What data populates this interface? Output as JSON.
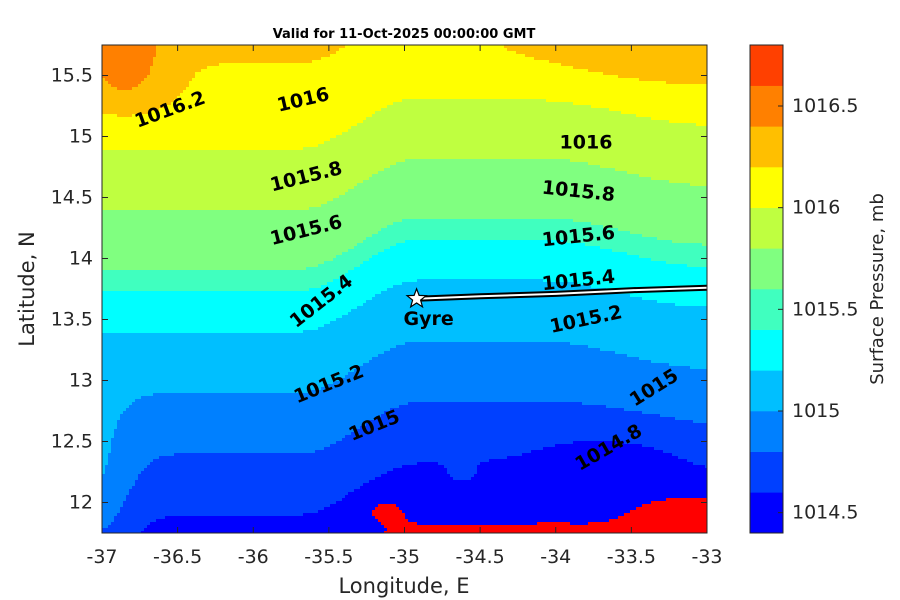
{
  "chart_data": {
    "type": "heatmap",
    "subtype": "filled-contour",
    "title": "Valid for 11-Oct-2025 00:00:00 GMT",
    "xlabel": "Longitude, E",
    "ylabel": "Latitude, N",
    "colorbar_label": "Surface Pressure, mb",
    "xlim": [
      -37,
      -33
    ],
    "ylim": [
      11.75,
      15.75
    ],
    "x_ticks": [
      -37,
      -36.5,
      -36,
      -35.5,
      -35,
      -34.5,
      -34,
      -33.5,
      -33
    ],
    "y_ticks": [
      12,
      12.5,
      13,
      13.5,
      14,
      14.5,
      15,
      15.5
    ],
    "colorbar": {
      "range": [
        1014.4,
        1016.8
      ],
      "ticks": [
        1014.5,
        1015,
        1015.5,
        1016,
        1016.5
      ],
      "bands": [
        {
          "from": 1014.4,
          "to": 1014.6,
          "color": "#0000ff"
        },
        {
          "from": 1014.6,
          "to": 1014.8,
          "color": "#0040ff"
        },
        {
          "from": 1014.8,
          "to": 1015.0,
          "color": "#0080ff"
        },
        {
          "from": 1015.0,
          "to": 1015.2,
          "color": "#00bfff"
        },
        {
          "from": 1015.2,
          "to": 1015.4,
          "color": "#00ffff"
        },
        {
          "from": 1015.4,
          "to": 1015.6,
          "color": "#40ffbf"
        },
        {
          "from": 1015.6,
          "to": 1015.8,
          "color": "#80ff80"
        },
        {
          "from": 1015.8,
          "to": 1016.0,
          "color": "#bfff40"
        },
        {
          "from": 1016.0,
          "to": 1016.2,
          "color": "#ffff00"
        },
        {
          "from": 1016.2,
          "to": 1016.4,
          "color": "#ffbf00"
        },
        {
          "from": 1016.4,
          "to": 1016.6,
          "color": "#ff8000"
        },
        {
          "from": 1016.6,
          "to": 1016.8,
          "color": "#ff4000"
        }
      ],
      "top_color": "#ff0000"
    },
    "contour_levels": [
      1014.6,
      1014.8,
      1015.0,
      1015.2,
      1015.4,
      1015.6,
      1015.8,
      1016.0,
      1016.2,
      1016.4
    ],
    "contour_labels": [
      {
        "text": "1016.2",
        "lon": -36.55,
        "lat": 15.22,
        "angle": -20
      },
      {
        "text": "1016",
        "lon": -35.67,
        "lat": 15.3,
        "angle": -13
      },
      {
        "text": "1016",
        "lon": -33.8,
        "lat": 14.95,
        "angle": 0
      },
      {
        "text": "1015.8",
        "lon": -35.65,
        "lat": 14.67,
        "angle": -14
      },
      {
        "text": "1015.8",
        "lon": -33.85,
        "lat": 14.55,
        "angle": 6
      },
      {
        "text": "1015.6",
        "lon": -35.65,
        "lat": 14.23,
        "angle": -14
      },
      {
        "text": "1015.6",
        "lon": -33.85,
        "lat": 14.18,
        "angle": -6
      },
      {
        "text": "1015.4",
        "lon": -35.55,
        "lat": 13.65,
        "angle": -38
      },
      {
        "text": "1015.4",
        "lon": -33.85,
        "lat": 13.82,
        "angle": -6
      },
      {
        "text": "1015.2",
        "lon": -35.5,
        "lat": 12.97,
        "angle": -22
      },
      {
        "text": "1015.2",
        "lon": -33.8,
        "lat": 13.5,
        "angle": -12
      },
      {
        "text": "1015",
        "lon": -35.2,
        "lat": 12.63,
        "angle": -22
      },
      {
        "text": "1015",
        "lon": -33.35,
        "lat": 12.94,
        "angle": -32
      },
      {
        "text": "1014.8",
        "lon": -33.65,
        "lat": 12.45,
        "angle": -30
      }
    ],
    "track": {
      "points": [
        [
          -34.92,
          13.67
        ],
        [
          -34.5,
          13.69
        ],
        [
          -34.0,
          13.71
        ],
        [
          -33.5,
          13.74
        ],
        [
          -33.0,
          13.76
        ]
      ],
      "marker": {
        "label": "Gyre",
        "lon": -34.92,
        "lat": 13.67
      }
    }
  }
}
